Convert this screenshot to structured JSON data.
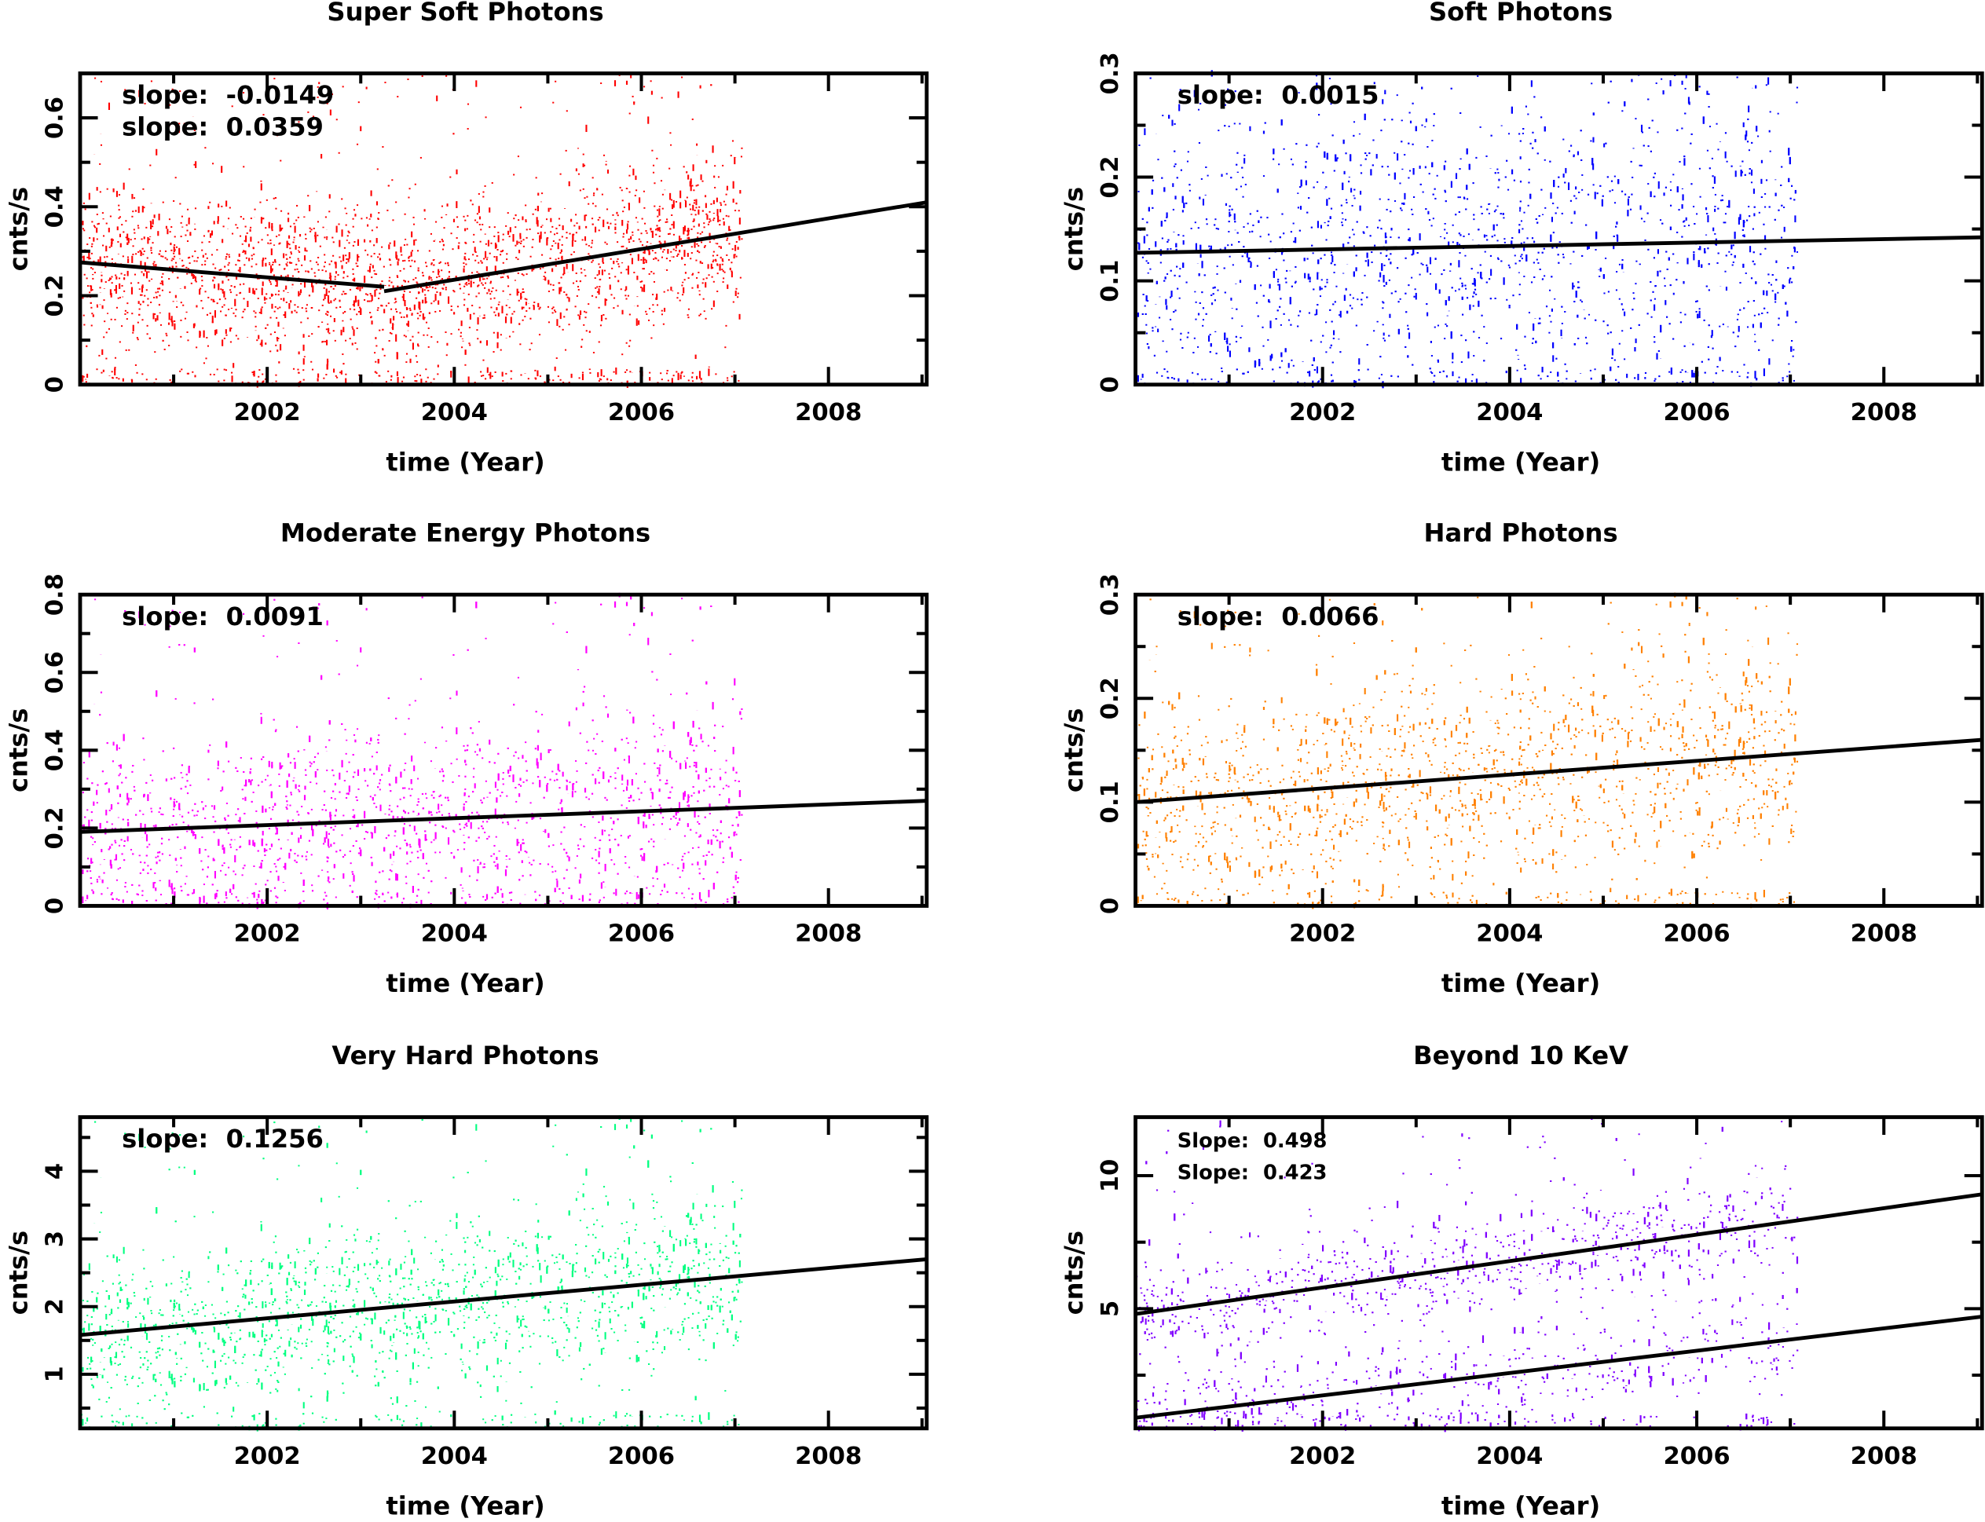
{
  "chart_data": [
    {
      "type": "scatter",
      "title": "Super Soft Photons",
      "xlabel": "time (Year)",
      "ylabel": "cnts/s",
      "color": "#ff0000",
      "xlim": [
        2000.0,
        2009.05
      ],
      "ylim": [
        0,
        0.7
      ],
      "x_ticks": [
        2002,
        2004,
        2006,
        2008
      ],
      "y_ticks": [
        0,
        0.2,
        0.4,
        0.6
      ],
      "data_x_range": [
        2000.0,
        2007.07
      ],
      "annotations": [
        "slope:  -0.0149",
        "slope:  0.0359"
      ],
      "fit_lines": [
        {
          "x": [
            2000.0,
            2003.25
          ],
          "y": [
            0.275,
            0.22
          ]
        },
        {
          "x": [
            2003.25,
            2009.05
          ],
          "y": [
            0.21,
            0.41
          ]
        }
      ]
    },
    {
      "type": "scatter",
      "title": "Soft Photons",
      "xlabel": "time (Year)",
      "ylabel": "cnts/s",
      "color": "#0000ff",
      "xlim": [
        2000.0,
        2009.05
      ],
      "ylim": [
        0,
        0.3
      ],
      "x_ticks": [
        2002,
        2004,
        2006,
        2008
      ],
      "y_ticks": [
        0,
        0.1,
        0.2,
        0.3
      ],
      "data_x_range": [
        2000.0,
        2007.07
      ],
      "annotations": [
        "slope:  0.0015"
      ],
      "fit_lines": [
        {
          "x": [
            2000.0,
            2009.05
          ],
          "y": [
            0.127,
            0.142
          ]
        }
      ]
    },
    {
      "type": "scatter",
      "title": "Moderate Energy Photons",
      "xlabel": "time (Year)",
      "ylabel": "cnts/s",
      "color": "#ff00ff",
      "xlim": [
        2000.0,
        2009.05
      ],
      "ylim": [
        0,
        0.8
      ],
      "x_ticks": [
        2002,
        2004,
        2006,
        2008
      ],
      "y_ticks": [
        0,
        0.2,
        0.4,
        0.6,
        0.8
      ],
      "data_x_range": [
        2000.0,
        2007.07
      ],
      "annotations": [
        "slope:  0.0091"
      ],
      "fit_lines": [
        {
          "x": [
            2000.0,
            2009.05
          ],
          "y": [
            0.19,
            0.27
          ]
        }
      ]
    },
    {
      "type": "scatter",
      "title": "Hard Photons",
      "xlabel": "time (Year)",
      "ylabel": "cnts/s",
      "color": "#ff8000",
      "xlim": [
        2000.0,
        2009.05
      ],
      "ylim": [
        0,
        0.3
      ],
      "x_ticks": [
        2002,
        2004,
        2006,
        2008
      ],
      "y_ticks": [
        0,
        0.1,
        0.2,
        0.3
      ],
      "data_x_range": [
        2000.0,
        2007.07
      ],
      "annotations": [
        "slope:  0.0066"
      ],
      "fit_lines": [
        {
          "x": [
            2000.0,
            2009.05
          ],
          "y": [
            0.1,
            0.16
          ]
        }
      ]
    },
    {
      "type": "scatter",
      "title": "Very Hard  Photons",
      "xlabel": "time (Year)",
      "ylabel": "cnts/s",
      "color": "#00ff80",
      "xlim": [
        2000.0,
        2009.05
      ],
      "ylim": [
        0.2,
        4.8
      ],
      "x_ticks": [
        2002,
        2004,
        2006,
        2008
      ],
      "y_ticks": [
        1,
        2,
        3,
        4
      ],
      "data_x_range": [
        2000.0,
        2007.07
      ],
      "annotations": [
        "slope:  0.1256"
      ],
      "fit_lines": [
        {
          "x": [
            2000.0,
            2009.05
          ],
          "y": [
            1.58,
            2.7
          ]
        }
      ]
    },
    {
      "type": "scatter",
      "title": "Beyond 10 KeV",
      "xlabel": "time (Year)",
      "ylabel": "cnts/s",
      "color": "#8000ff",
      "xlim": [
        2000.0,
        2009.05
      ],
      "ylim": [
        0.5,
        12.2
      ],
      "x_ticks": [
        2002,
        2004,
        2006,
        2008
      ],
      "y_ticks": [
        5,
        10
      ],
      "data_x_range": [
        2000.0,
        2007.07
      ],
      "annotations": [
        "Slope:  0.498",
        "Slope:  0.423"
      ],
      "fit_lines": [
        {
          "x": [
            2000.0,
            2009.05
          ],
          "y": [
            4.8,
            9.3
          ]
        },
        {
          "x": [
            2000.0,
            2009.05
          ],
          "y": [
            0.9,
            4.7
          ]
        }
      ]
    }
  ]
}
